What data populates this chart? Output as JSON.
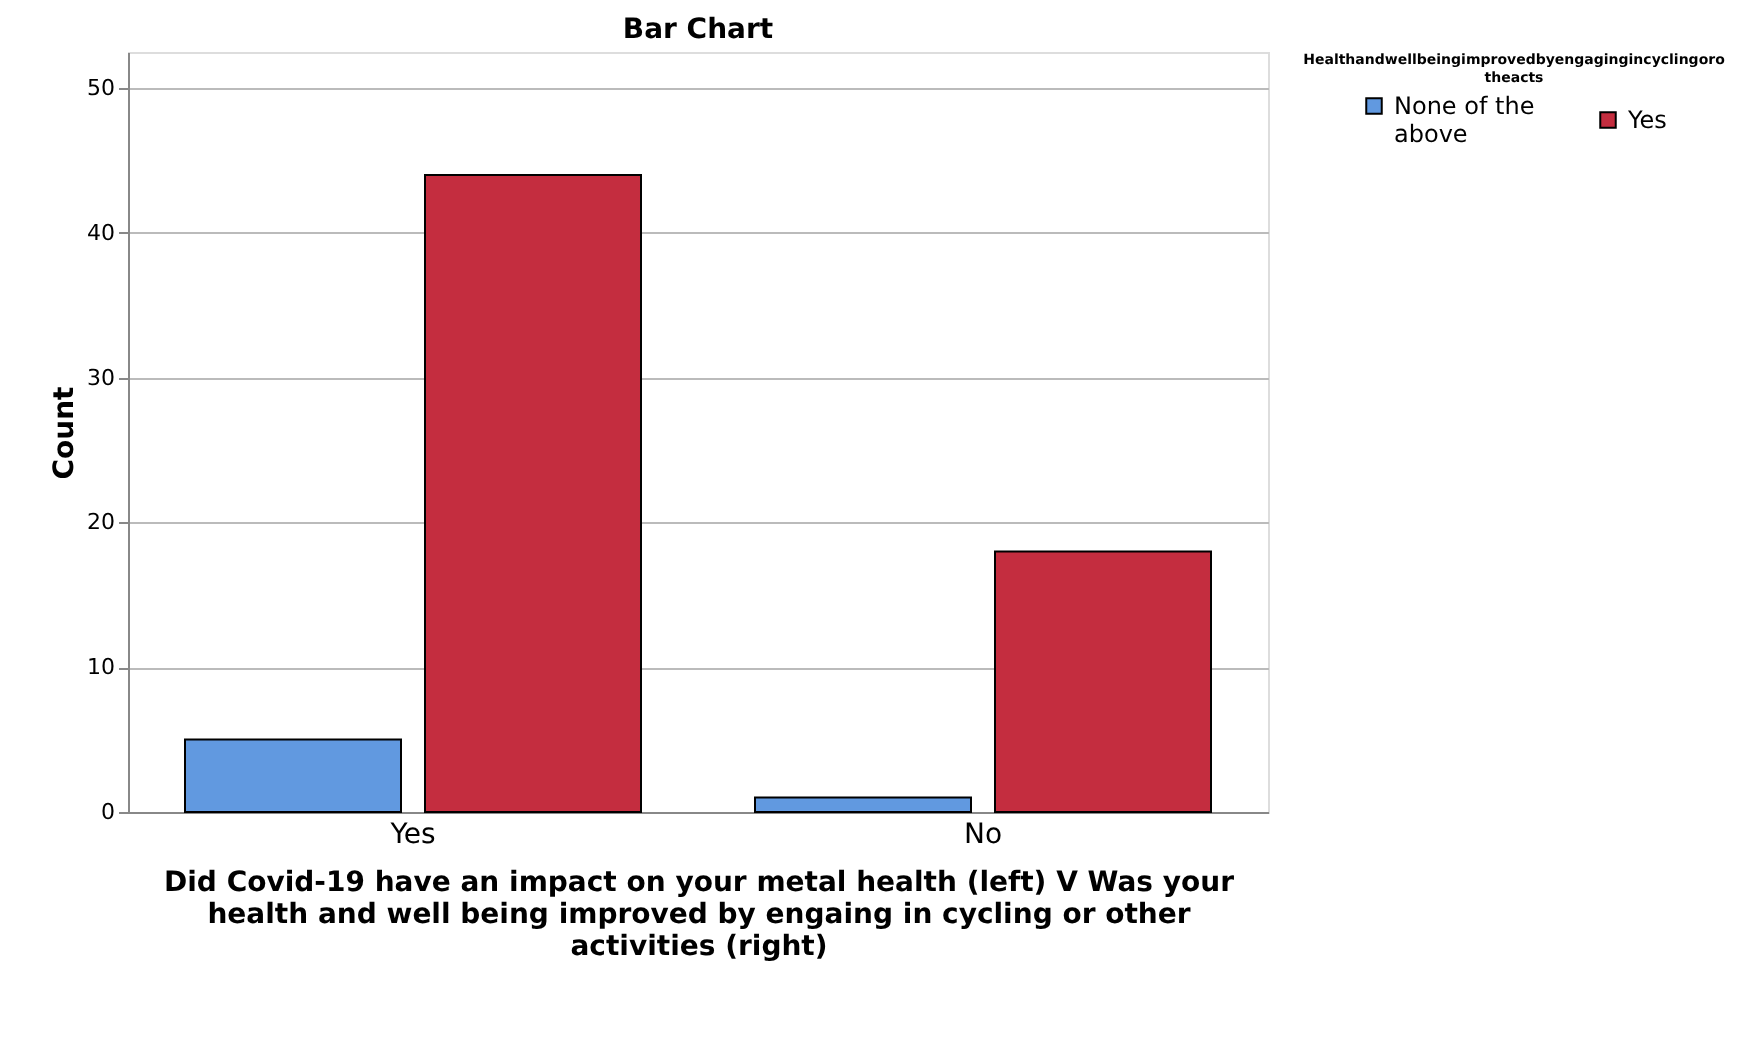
{
  "chart_data": {
    "type": "bar",
    "title": "Bar Chart",
    "xlabel": "Did Covid-19 have an impact on your metal health (left) V Was your health and well being improved by engaing in cycling or other activities (right)",
    "ylabel": "Count",
    "legend_title": "Healthandwellbeingimprovedbyengagingincyclingorotheacts",
    "categories": [
      "Yes",
      "No"
    ],
    "series": [
      {
        "name": "None of the above",
        "color": "#6199e0",
        "values": [
          5,
          1
        ]
      },
      {
        "name": "Yes",
        "color": "#c42d3f",
        "values": [
          44,
          18
        ]
      }
    ],
    "ylim": [
      0,
      52.5
    ],
    "yticks": [
      0,
      10,
      20,
      30,
      40,
      50
    ],
    "grid": "y",
    "legend": "top right"
  }
}
